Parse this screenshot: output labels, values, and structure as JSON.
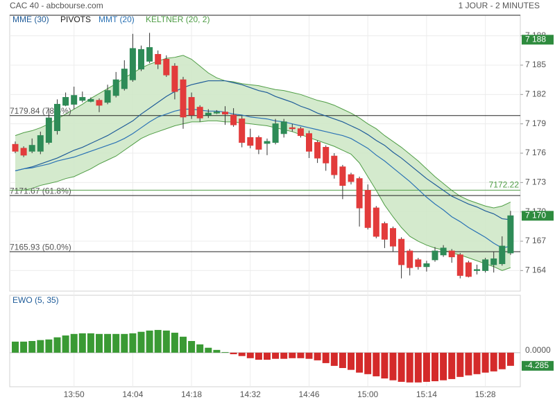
{
  "header": {
    "title": "CAC 40 - abcbourse.com",
    "period": "1 JOUR - 2 MINUTES"
  },
  "chart_data": [
    {
      "type": "candlestick",
      "categories": [
        null,
        null,
        null,
        null,
        null,
        null,
        null,
        "13:50",
        null,
        null,
        null,
        null,
        null,
        null,
        "14:04",
        null,
        null,
        null,
        null,
        null,
        null,
        "14:18",
        null,
        null,
        null,
        null,
        null,
        null,
        "14:32",
        null,
        null,
        null,
        null,
        null,
        null,
        "14:46",
        null,
        null,
        null,
        null,
        null,
        null,
        "15:00",
        null,
        null,
        null,
        null,
        null,
        null,
        "15:14",
        null,
        null,
        null,
        null,
        null,
        null,
        "15:28",
        null,
        null,
        null
      ],
      "open": [
        7176.9,
        7176.5,
        7176.2,
        7176.2,
        7177.1,
        7178.3,
        7180.9,
        7181.0,
        7181.4,
        7181.3,
        7181.4,
        7181.2,
        7181.9,
        7182.6,
        7183.5,
        7184.6,
        7185.4,
        7186.1,
        7185.6,
        7184.9,
        7183.5,
        7181.7,
        7180.7,
        7179.9,
        7180.1,
        7180.2,
        7179.9,
        7179.5,
        7177.6,
        7177.6,
        7177.0,
        7177.1,
        7178.0,
        7178.6,
        7178.5,
        7178.0,
        7177.1,
        7176.6,
        7175.7,
        7174.6,
        7173.8,
        7173.4,
        7172.2,
        7170.4,
        7168.8,
        7168.3,
        7167.2,
        7166.0,
        7165.1,
        7164.4,
        7165.1,
        7165.6,
        7166.0,
        7165.6,
        7164.8,
        7164.0,
        7164.0,
        7164.6,
        7164.7,
        7165.8
      ],
      "high": [
        7177.2,
        7176.7,
        7177.5,
        7178.2,
        7180.5,
        7181.5,
        7182.2,
        7182.8,
        7182.3,
        7181.7,
        7181.6,
        7183.0,
        7184.3,
        7185.5,
        7188.2,
        7187.0,
        7188.3,
        7186.5,
        7186.0,
        7185.2,
        7183.8,
        7182.2,
        7180.9,
        7180.5,
        7180.4,
        7180.8,
        7180.6,
        7179.8,
        7178.5,
        7177.8,
        7177.5,
        7179.5,
        7179.5,
        7179.0,
        7178.7,
        7178.3,
        7177.3,
        7176.8,
        7176.0,
        7174.8,
        7174.0,
        7173.6,
        7172.8,
        7170.6,
        7169.0,
        7168.5,
        7167.4,
        7166.2,
        7165.3,
        7165.0,
        7166.4,
        7166.6,
        7166.2,
        7165.8,
        7165.0,
        7164.6,
        7165.3,
        7165.9,
        7167.5,
        7170.1
      ],
      "low": [
        7176.0,
        7175.6,
        7176.0,
        7175.9,
        7176.9,
        7177.9,
        7180.8,
        7180.5,
        7181.2,
        7181.2,
        7180.2,
        7181.0,
        7181.7,
        7182.4,
        7183.3,
        7184.4,
        7185.2,
        7184.6,
        7183.8,
        7181.5,
        7178.5,
        7179.5,
        7179.2,
        7179.6,
        7180.0,
        7178.9,
        7178.7,
        7176.6,
        7176.5,
        7175.9,
        7175.8,
        7176.9,
        7177.6,
        7178.2,
        7177.6,
        7175.5,
        7175.0,
        7174.2,
        7173.4,
        7171.3,
        7172.8,
        7168.5,
        7168.2,
        7167.3,
        7166.3,
        7165.9,
        7163.2,
        7163.5,
        7164.1,
        7163.9,
        7164.9,
        7165.4,
        7164.8,
        7163.2,
        7163.3,
        7163.6,
        7163.8,
        7163.8,
        7164.5,
        7165.6
      ],
      "close": [
        7176.2,
        7175.8,
        7176.8,
        7177.8,
        7179.6,
        7181.0,
        7181.7,
        7181.9,
        7181.7,
        7181.5,
        7180.9,
        7182.4,
        7183.5,
        7184.6,
        7186.7,
        7186.6,
        7186.8,
        7185.1,
        7184.0,
        7182.3,
        7179.7,
        7179.9,
        7179.6,
        7180.1,
        7180.2,
        7180.0,
        7178.9,
        7177.1,
        7176.8,
        7176.4,
        7177.2,
        7179.0,
        7179.2,
        7178.5,
        7177.8,
        7176.2,
        7175.5,
        7175.0,
        7173.8,
        7172.7,
        7173.1,
        7170.4,
        7168.4,
        7167.5,
        7167.2,
        7166.5,
        7164.6,
        7164.3,
        7164.4,
        7164.7,
        7166.0,
        7166.3,
        7165.4,
        7163.5,
        7163.4,
        7164.1,
        7165.1,
        7165.2,
        7166.5,
        7169.6
      ],
      "up_color": "#2e8b57",
      "down_color": "#e23b3b",
      "series": [
        {
          "name": "MME (30)",
          "color": "#1f5c99",
          "values": [
            7174.2,
            7174.4,
            7174.6,
            7174.9,
            7175.2,
            7175.5,
            7175.9,
            7176.3,
            7176.6,
            7177.0,
            7177.4,
            7177.8,
            7178.3,
            7178.8,
            7179.3,
            7180.0,
            7180.6,
            7181.2,
            7181.8,
            7182.3,
            7182.7,
            7183.0,
            7183.2,
            7183.4,
            7183.4,
            7183.4,
            7183.2,
            7183.0,
            7182.7,
            7182.4,
            7182.2,
            7181.8,
            7181.5,
            7181.2,
            7180.8,
            7180.5,
            7180.1,
            7179.8,
            7179.5,
            7179.2,
            7178.8,
            7178.4,
            7177.9,
            7177.3,
            7176.8,
            7176.1,
            7175.5,
            7174.8,
            7174.1,
            7173.4,
            7172.8,
            7172.2,
            7171.6,
            7171.2,
            7170.8,
            7170.5,
            7170.1,
            7169.8,
            7169.3,
            7169.2
          ]
        },
        {
          "name": "MMT (20)",
          "color": "#2a72b5",
          "values": [
            7174.2,
            7174.4,
            7174.5,
            7174.7,
            7174.9,
            7175.2,
            7175.4,
            7175.6,
            7175.9,
            7176.2,
            7176.5,
            7176.8,
            7177.1,
            7177.5,
            7178.0,
            7178.6,
            7179.2,
            7179.7,
            7180.0,
            7180.3,
            7180.5,
            7180.5,
            7180.4,
            7180.3,
            7180.3,
            7180.2,
            7180.0,
            7179.9,
            7179.7,
            7179.6,
            7179.5,
            7179.3,
            7179.2,
            7179.0,
            7178.8,
            7178.6,
            7178.4,
            7178.2,
            7178.0,
            7177.8,
            7177.5,
            7177.0,
            7176.5,
            7175.8,
            7175.2,
            7174.5,
            7173.8,
            7173.1,
            7172.3,
            7171.5,
            7170.8,
            7170.2,
            7169.5,
            7169.0,
            7168.4,
            7167.9,
            7167.4,
            7166.8,
            7166.3,
            7166.5
          ]
        }
      ],
      "keltner": {
        "name": "KELTNER (20, 2)",
        "color": "#4f9d45",
        "fill": "#cfe8c8",
        "upper": [
          7177.8,
          7178.1,
          7178.3,
          7178.6,
          7179.0,
          7179.5,
          7180.0,
          7180.5,
          7181.0,
          7181.6,
          7182.1,
          7182.6,
          7183.1,
          7183.7,
          7184.2,
          7184.7,
          7185.1,
          7185.4,
          7185.7,
          7185.8,
          7186.0,
          7185.6,
          7184.9,
          7184.2,
          7183.7,
          7183.4,
          7183.3,
          7183.1,
          7183.0,
          7182.9,
          7182.7,
          7182.5,
          7182.4,
          7182.2,
          7182.0,
          7181.7,
          7181.4,
          7181.2,
          7180.9,
          7180.5,
          7180.1,
          7179.6,
          7179.0,
          7178.5,
          7177.8,
          7177.2,
          7176.6,
          7175.9,
          7175.2,
          7174.4,
          7173.6,
          7172.9,
          7172.2,
          7171.6,
          7171.2,
          7170.9,
          7170.6,
          7170.4,
          7170.6,
          7171.0
        ],
        "lower": [
          7172.2,
          7172.2,
          7172.4,
          7172.7,
          7172.9,
          7173.1,
          7173.4,
          7173.6,
          7174.0,
          7174.4,
          7174.9,
          7175.3,
          7175.7,
          7176.3,
          7176.9,
          7177.5,
          7177.9,
          7178.2,
          7178.5,
          7178.8,
          7179.0,
          7179.2,
          7179.2,
          7179.3,
          7179.3,
          7179.2,
          7179.2,
          7179.1,
          7179.0,
          7178.9,
          7178.8,
          7178.6,
          7178.4,
          7178.2,
          7177.9,
          7177.6,
          7177.3,
          7177.0,
          7176.7,
          7176.3,
          7175.9,
          7175.0,
          7173.6,
          7172.2,
          7170.7,
          7169.5,
          7168.4,
          7167.5,
          7167.0,
          7166.6,
          7166.3,
          7166.1,
          7165.8,
          7165.6,
          7165.3,
          7165.0,
          7164.7,
          7164.4,
          7164.0,
          7164.3
        ]
      },
      "pivots": {
        "name": "PIVOTS",
        "color": "#222222",
        "levels": [
          {
            "value": 7179.84,
            "label": "7179.84  (78.6%)"
          },
          {
            "value": 7171.67,
            "label": "7171.67  (61.8%)"
          },
          {
            "value": 7165.93,
            "label": "7165.93  (50.0%)"
          }
        ]
      },
      "annotations": [
        {
          "value": 7172.22,
          "label": "7172.22",
          "color": "#4f9d45"
        }
      ],
      "price_labels": [
        {
          "value": 7187.6,
          "label": "7 188"
        },
        {
          "value": 7169.6,
          "label": "7 170"
        }
      ],
      "label_color": "#2e8b3e",
      "ylim": [
        7161.9,
        7190.1
      ],
      "yticks": [
        {
          "value": 7164,
          "label": "7 164"
        },
        {
          "value": 7167,
          "label": "7 167"
        },
        {
          "value": 7170,
          "label": "7 170"
        },
        {
          "value": 7173,
          "label": "7 173"
        },
        {
          "value": 7176,
          "label": "7 176"
        },
        {
          "value": 7179,
          "label": "7 179"
        },
        {
          "value": 7182,
          "label": "7 182"
        },
        {
          "value": 7185,
          "label": "7 185"
        },
        {
          "value": 7188,
          "label": "7 188"
        }
      ],
      "grid": true
    },
    {
      "type": "bar",
      "title": "EWO (5, 35)",
      "values": [
        3.6,
        3.6,
        3.8,
        4.1,
        4.3,
        5.0,
        5.6,
        6.1,
        6.3,
        6.3,
        6.1,
        6.1,
        6.1,
        6.1,
        6.3,
        6.8,
        7.2,
        7.4,
        7.2,
        6.5,
        5.2,
        3.8,
        2.7,
        1.6,
        0.9,
        0.2,
        -0.5,
        -1.1,
        -1.8,
        -2.3,
        -2.3,
        -2.0,
        -2.0,
        -1.8,
        -1.8,
        -2.0,
        -2.5,
        -3.4,
        -4.3,
        -5.0,
        -5.6,
        -6.5,
        -7.0,
        -7.7,
        -8.4,
        -9.0,
        -9.5,
        -9.7,
        -9.7,
        -9.5,
        -9.3,
        -9.0,
        -8.6,
        -7.9,
        -7.4,
        -7.0,
        -6.5,
        -6.1,
        -5.4,
        -4.285
      ],
      "value_labels": [
        null,
        null,
        null,
        null,
        null,
        null,
        null,
        null,
        null,
        null,
        null,
        null,
        null,
        null,
        null,
        null,
        null,
        null,
        null,
        null,
        null,
        null,
        null,
        null,
        null,
        null,
        null,
        null,
        null,
        null,
        null,
        null,
        null,
        null,
        null,
        null,
        null,
        null,
        null,
        null,
        null,
        null,
        null,
        null,
        null,
        null,
        null,
        null,
        null,
        null,
        null,
        null,
        null,
        null,
        null,
        null,
        null,
        null,
        null,
        "-4.285"
      ],
      "up_color": "#3a9a34",
      "down_color": "#d42a2a",
      "label_color": "#2e8b3e",
      "ylim": [
        -11.1,
        18.7
      ],
      "yticks": [
        {
          "value": 0,
          "label": "0.0000"
        }
      ]
    }
  ]
}
